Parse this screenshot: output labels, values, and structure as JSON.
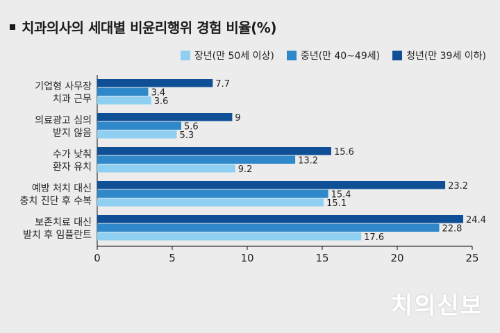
{
  "chart_data": {
    "type": "bar",
    "orientation": "horizontal",
    "title": "치과의사의 세대별 비윤리행위 경험 비율(%)",
    "categories": [
      [
        "기업형 사무장",
        "치과 근무"
      ],
      [
        "의료광고 심의",
        "받지 않음"
      ],
      [
        "수가 낮춰",
        "환자 유치"
      ],
      [
        "예방 처치 대신",
        "충치 진단 후 수복"
      ],
      [
        "보존치료 대신",
        "발치 후 임플란트"
      ]
    ],
    "series": [
      {
        "name": "청년(만 39세 이하)",
        "color": "#0e4f96",
        "values": [
          7.7,
          9,
          15.6,
          23.2,
          24.4
        ],
        "labels": [
          "7.7",
          "9",
          "15.6",
          "23.2",
          "24.4"
        ]
      },
      {
        "name": "중년(만 40~49세)",
        "color": "#2f88c9",
        "values": [
          3.4,
          5.6,
          13.2,
          15.4,
          22.8
        ],
        "labels": [
          "3.4",
          "5.6",
          "13.2",
          "15.4",
          "22.8"
        ]
      },
      {
        "name": "장년(만 50세 이상)",
        "color": "#8fd0f2",
        "values": [
          3.6,
          5.3,
          9.2,
          15.1,
          17.6
        ],
        "labels": [
          "3.6",
          "5.3",
          "9.2",
          "15.1",
          "17.6"
        ]
      }
    ],
    "legend_order": [
      2,
      1,
      0
    ],
    "xlim": [
      0,
      25
    ],
    "xticks": [
      0,
      5,
      10,
      15,
      20,
      25
    ],
    "xtick_labels": [
      "0",
      "5",
      "10",
      "15",
      "20",
      "25"
    ],
    "grid": false,
    "legend_position": "top-right"
  },
  "watermark": "치의신보"
}
